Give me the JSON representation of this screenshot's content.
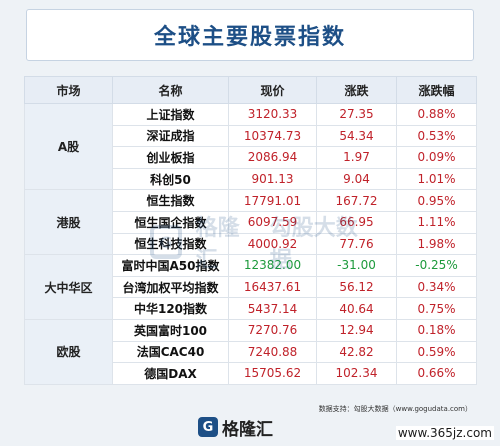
{
  "title": "全球主要股票指数",
  "columns": [
    "市场",
    "名称",
    "现价",
    "涨跌",
    "涨跌幅"
  ],
  "groups": [
    {
      "market": "A股",
      "rows": [
        {
          "name": "上证指数",
          "price": "3120.33",
          "change": "27.35",
          "pct": "0.88%"
        },
        {
          "name": "深证成指",
          "price": "10374.73",
          "change": "54.34",
          "pct": "0.53%"
        },
        {
          "name": "创业板指",
          "price": "2086.94",
          "change": "1.97",
          "pct": "0.09%"
        },
        {
          "name": "科创50",
          "price": "901.13",
          "change": "9.04",
          "pct": "1.01%"
        }
      ]
    },
    {
      "market": "港股",
      "rows": [
        {
          "name": "恒生指数",
          "price": "17791.01",
          "change": "167.72",
          "pct": "0.95%"
        },
        {
          "name": "恒生国企指数",
          "price": "6097.59",
          "change": "66.95",
          "pct": "1.11%"
        },
        {
          "name": "恒生科技指数",
          "price": "4000.92",
          "change": "77.76",
          "pct": "1.98%"
        }
      ]
    },
    {
      "market": "大中华区",
      "rows": [
        {
          "name": "富时中国A50指数",
          "price": "12382.00",
          "change": "-31.00",
          "pct": "-0.25%"
        },
        {
          "name": "台湾加权平均指数",
          "price": "16437.61",
          "change": "56.12",
          "pct": "0.34%"
        },
        {
          "name": "中华120指数",
          "price": "5437.14",
          "change": "40.64",
          "pct": "0.75%"
        }
      ]
    },
    {
      "market": "欧股",
      "rows": [
        {
          "name": "英国富时100",
          "price": "7270.76",
          "change": "12.94",
          "pct": "0.18%"
        },
        {
          "name": "法国CAC40",
          "price": "7240.88",
          "change": "42.82",
          "pct": "0.59%"
        },
        {
          "name": "德国DAX",
          "price": "15705.62",
          "change": "102.34",
          "pct": "0.66%"
        }
      ]
    }
  ],
  "colors": {
    "up": "#c0222a",
    "down": "#1d9a3c",
    "title": "#1d4f86"
  },
  "watermark": {
    "logo": "G",
    "text1": "格隆汇",
    "text2": "勾股大数据"
  },
  "footer": {
    "source": "数据支持：勾股大数据（www.gogudata.com）",
    "brand_logo": "G",
    "brand_name": "格隆汇",
    "site": "www.365jz.com"
  }
}
